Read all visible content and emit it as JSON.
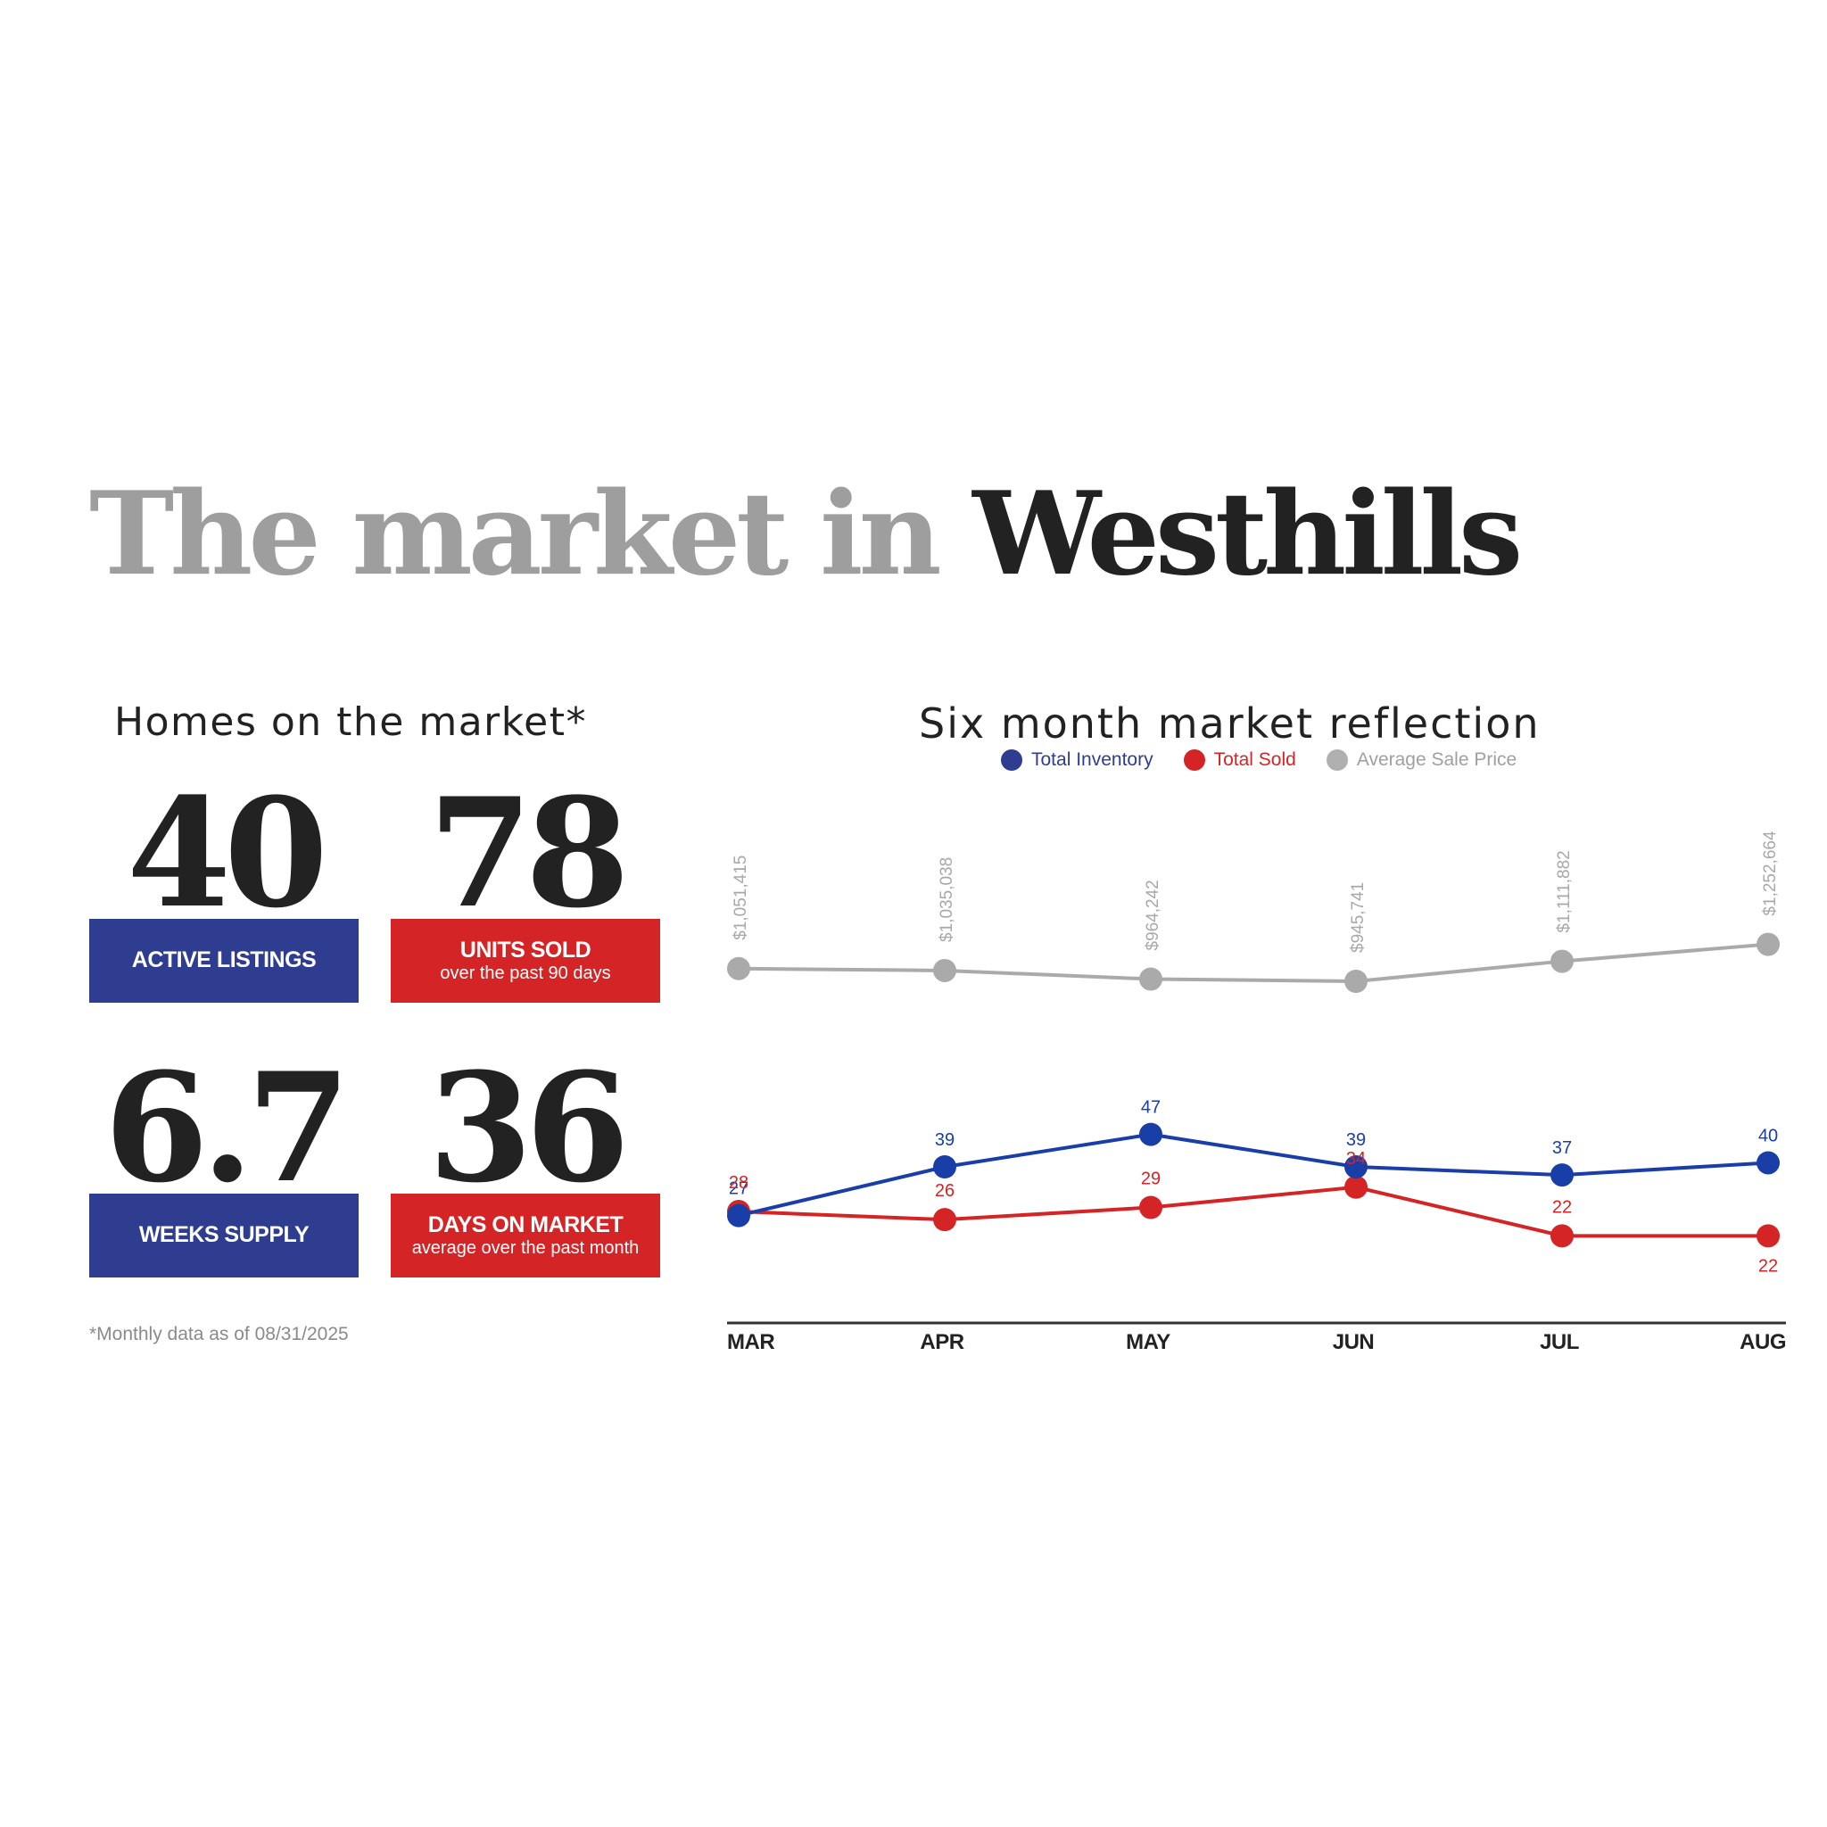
{
  "header": {
    "title_prefix": "The market in",
    "title_place": "Westhills"
  },
  "homes": {
    "title": "Homes on the market*",
    "stats": {
      "active": {
        "value": "40",
        "label": "ACTIVE LISTINGS",
        "sub": ""
      },
      "sold": {
        "value": "78",
        "label": "UNITS SOLD",
        "sub": "over the past 90 days"
      },
      "supply": {
        "value": "6.7",
        "label": "WEEKS SUPPLY",
        "sub": ""
      },
      "dom": {
        "value": "36",
        "label": "DAYS ON MARKET",
        "sub": "average over the past month"
      }
    },
    "footnote": "*Monthly data as of 08/31/2025"
  },
  "colors": {
    "inventory": "#1a3ea8",
    "sold": "#d42426",
    "price": "#aaaaaa",
    "box_blue": "#2e3d8f",
    "box_red": "#d42426",
    "text_dark": "#222222"
  },
  "chart_data": {
    "type": "line",
    "title": "Six month market reflection",
    "categories": [
      "MAR",
      "APR",
      "MAY",
      "JUN",
      "JUL",
      "AUG"
    ],
    "legend_position": "top-center",
    "grid": false,
    "series": [
      {
        "name": "Total Inventory",
        "values": [
          27,
          39,
          47,
          39,
          37,
          40
        ],
        "labels": [
          "27",
          "39",
          "47",
          "39",
          "37",
          "40"
        ]
      },
      {
        "name": "Total Sold",
        "values": [
          28,
          26,
          29,
          34,
          22,
          22
        ],
        "labels": [
          "28",
          "26",
          "29",
          "34",
          "22",
          "22"
        ]
      },
      {
        "name": "Average Sale Price",
        "values": [
          1051415,
          1035038,
          964242,
          945741,
          1111882,
          1252664
        ],
        "labels": [
          "$1,051,415",
          "$1,035,038",
          "$964,242",
          "$945,741",
          "$1,111,882",
          "$1,252,664"
        ]
      }
    ]
  }
}
